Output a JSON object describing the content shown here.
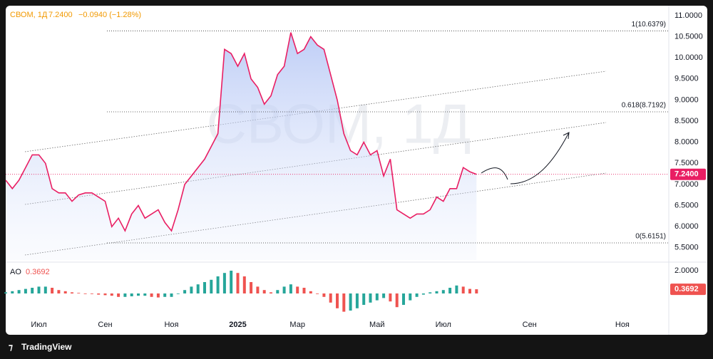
{
  "header": {
    "symbol": "СВОМ, 1Д",
    "last": "7.2400",
    "change": "−0.0940 (−1.28%)",
    "watermark": "СВОМ, 1Д",
    "brand": "TradingView"
  },
  "chart_data": [
    {
      "type": "line",
      "color": "#e91e63",
      "categories": [
        null,
        null,
        null,
        null,
        null,
        "Июл",
        null,
        null,
        null,
        null,
        null,
        null,
        null,
        null,
        null,
        "Сен",
        null,
        null,
        null,
        null,
        null,
        null,
        null,
        null,
        null,
        "Ноя",
        null,
        null,
        null,
        null,
        null,
        null,
        null,
        null,
        null,
        "2025",
        null,
        null,
        null,
        null,
        null,
        null,
        null,
        null,
        "Мар",
        null,
        null,
        null,
        null,
        null,
        null,
        null,
        null,
        null,
        null,
        null,
        "Май",
        null,
        null,
        null,
        null,
        null,
        null,
        null,
        null,
        null,
        "Июл",
        null,
        null,
        null,
        null,
        null,
        null,
        null,
        null,
        null,
        null,
        null,
        null,
        "Сен",
        null,
        null,
        null,
        null,
        null,
        null,
        null,
        null,
        null,
        null,
        null,
        null,
        null,
        "Ноя",
        null,
        null,
        null,
        null,
        null,
        null
      ],
      "values": [
        7.1,
        6.9,
        7.1,
        7.4,
        7.7,
        7.7,
        7.5,
        6.9,
        6.8,
        6.8,
        6.6,
        6.75,
        6.8,
        6.8,
        6.7,
        6.6,
        6.0,
        6.2,
        5.9,
        6.3,
        6.5,
        6.2,
        6.3,
        6.4,
        6.1,
        5.9,
        6.4,
        7.0,
        7.2,
        7.4,
        7.6,
        7.9,
        8.2,
        10.2,
        10.1,
        9.8,
        10.1,
        9.5,
        9.3,
        8.9,
        9.1,
        9.6,
        9.8,
        10.6,
        10.1,
        10.2,
        10.5,
        10.3,
        10.2,
        9.6,
        9.0,
        8.2,
        7.8,
        7.7,
        8.0,
        7.7,
        7.8,
        7.2,
        7.6,
        6.4,
        6.3,
        6.2,
        6.3,
        6.3,
        6.4,
        6.7,
        6.6,
        6.9,
        6.9,
        7.4,
        7.3,
        7.24,
        null,
        null,
        null,
        null,
        null,
        null,
        null,
        null,
        null,
        null,
        null,
        null,
        null,
        null,
        null,
        null,
        null,
        null,
        null,
        null,
        null,
        null,
        null,
        null,
        null,
        null,
        null,
        null
      ],
      "ylim": [
        5.21,
        11.2
      ],
      "yticks": [
        {
          "value": 5.5,
          "label": "5.5000"
        },
        {
          "value": 6,
          "label": "6.0000"
        },
        {
          "value": 6.5,
          "label": "6.5000"
        },
        {
          "value": 7,
          "label": "7.0000"
        },
        {
          "value": 7.5,
          "label": "7.5000"
        },
        {
          "value": 8,
          "label": "8.0000"
        },
        {
          "value": 8.5,
          "label": "8.5000"
        },
        {
          "value": 9,
          "label": "9.0000"
        },
        {
          "value": 9.5,
          "label": "9.5000"
        },
        {
          "value": 10,
          "label": "10.0000"
        },
        {
          "value": 10.5,
          "label": "10.5000"
        },
        {
          "value": 11,
          "label": "11.0000"
        }
      ],
      "fib_levels": [
        {
          "label": "1(10.6379)",
          "value": 10.6379
        },
        {
          "label": "0.618(8.7192)",
          "value": 8.7192
        },
        {
          "label": "0(5.6151)",
          "value": 5.6151
        }
      ]
    },
    {
      "type": "bar",
      "name": "AO",
      "last_label": "0.3692",
      "up_color": "#26a69a",
      "down_color": "#ef5350",
      "values": [
        0.1,
        0.2,
        0.3,
        0.4,
        0.5,
        0.6,
        0.6,
        0.5,
        0.3,
        0.2,
        0.1,
        0.05,
        0,
        -0.05,
        -0.1,
        -0.15,
        -0.2,
        -0.3,
        -0.3,
        -0.25,
        -0.2,
        -0.2,
        -0.3,
        -0.35,
        -0.3,
        -0.3,
        0,
        0.3,
        0.6,
        0.8,
        1.0,
        1.2,
        1.5,
        1.8,
        2.0,
        1.8,
        1.5,
        1.0,
        0.6,
        0.3,
        0.1,
        0.3,
        0.6,
        0.8,
        0.6,
        0.5,
        0.2,
        0,
        -0.3,
        -0.8,
        -1.3,
        -1.6,
        -1.5,
        -1.3,
        -1.0,
        -0.8,
        -0.6,
        -0.4,
        -0.7,
        -1.2,
        -1.0,
        -0.6,
        -0.3,
        -0.1,
        0.1,
        0.2,
        0.3,
        0.5,
        0.7,
        0.6,
        0.4,
        0.3692,
        null,
        null,
        null,
        null,
        null,
        null,
        null,
        null,
        null,
        null,
        null,
        null,
        null,
        null,
        null,
        null,
        null,
        null,
        null,
        null,
        null,
        null,
        null,
        null,
        null,
        null,
        null,
        null
      ],
      "ylim": [
        -2.25,
        2.5
      ],
      "yticks": [
        {
          "value": 2,
          "label": "2.0000"
        }
      ]
    }
  ]
}
